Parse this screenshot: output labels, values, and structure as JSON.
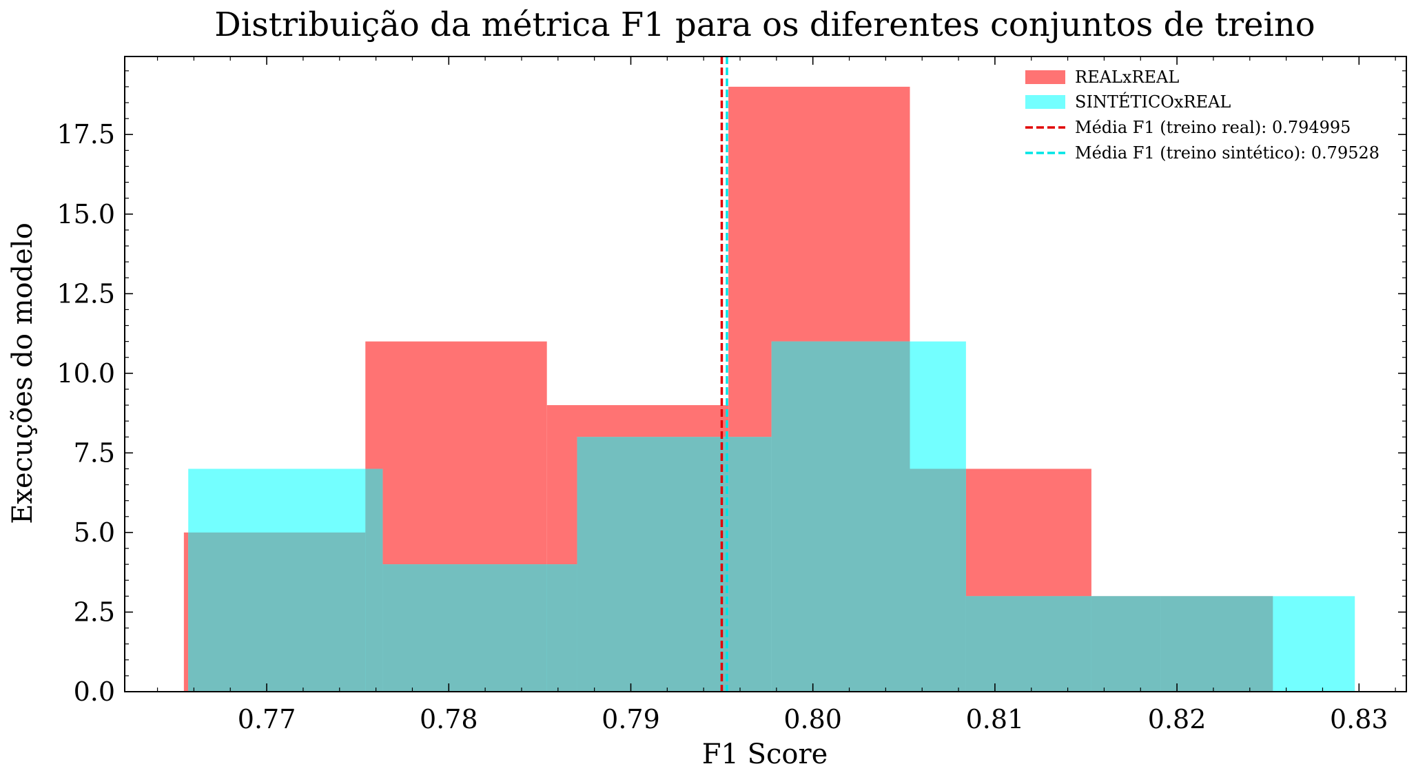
{
  "chart_data": {
    "type": "bar",
    "title": "Distribuição da métrica F1 para os diferentes conjuntos de treino",
    "xlabel": "F1 Score",
    "ylabel": "Execuções do modelo",
    "xlim": [
      0.7622,
      0.8326
    ],
    "ylim": [
      0,
      19.95
    ],
    "x_ticks": [
      0.77,
      0.78,
      0.79,
      0.8,
      0.81,
      0.82,
      0.83
    ],
    "x_tick_labels": [
      "0.77",
      "0.78",
      "0.79",
      "0.80",
      "0.81",
      "0.82",
      "0.83"
    ],
    "y_ticks": [
      0,
      2.5,
      5.0,
      7.5,
      10.0,
      12.5,
      15.0,
      17.5
    ],
    "y_tick_labels": [
      "0.0",
      "2.5",
      "5.0",
      "7.5",
      "10.0",
      "12.5",
      "15.0",
      "17.5"
    ],
    "grid": false,
    "legend_position": "top-right",
    "series": [
      {
        "name": "REALxREAL",
        "color": "#ff7373",
        "bin_edges": [
          0.76545,
          0.77542,
          0.78539,
          0.79536,
          0.80533,
          0.8153,
          0.82527
        ],
        "counts": [
          5,
          11,
          9,
          19,
          7,
          3
        ]
      },
      {
        "name": "SINTÉTICOxREAL",
        "color": "#73ffff",
        "bin_edges": [
          0.76569,
          0.77637,
          0.78705,
          0.79773,
          0.80841,
          0.81909,
          0.82977
        ],
        "counts": [
          7,
          4,
          8,
          11,
          3,
          3
        ]
      }
    ],
    "overlap_color": "#73bfbf",
    "mean_lines": [
      {
        "label": "Média F1 (treino real): 0.794995",
        "value": 0.794995,
        "color": "#e00000",
        "style": "dashed"
      },
      {
        "label": "Média F1 (treino sintético): 0.79528",
        "value": 0.79528,
        "color": "#00e5e5",
        "style": "dashed"
      }
    ]
  }
}
